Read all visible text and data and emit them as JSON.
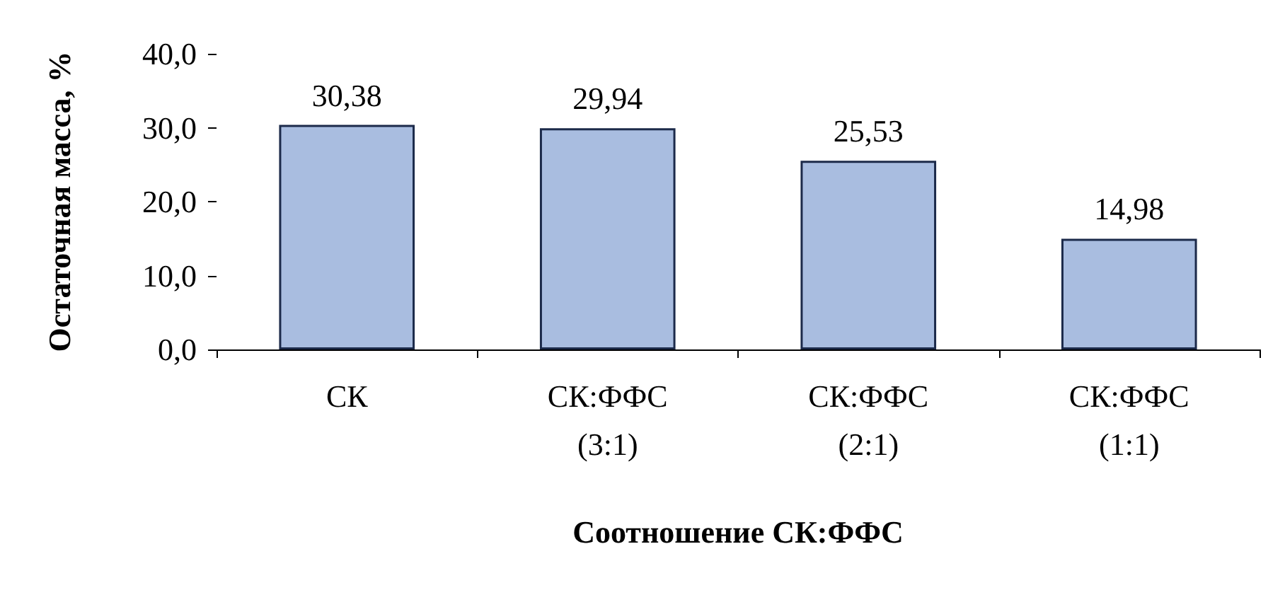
{
  "chart_data": {
    "type": "bar",
    "xlabel": "Соотношение СК:ФФС",
    "ylabel": "Остаточная масса, %",
    "categories": [
      "СК",
      "СК:ФФС\n(3:1)",
      "СК:ФФС\n(2:1)",
      "СК:ФФС\n(1:1)"
    ],
    "values": [
      30.38,
      29.94,
      25.53,
      14.98
    ],
    "value_labels": [
      "30,38",
      "29,94",
      "25,53",
      "14,98"
    ],
    "color": "#a9bde0",
    "ylim": [
      0,
      40
    ],
    "yticks": [
      {
        "value": 0,
        "label": "0,0"
      },
      {
        "value": 10,
        "label": "10,0"
      },
      {
        "value": 20,
        "label": "20,0"
      },
      {
        "value": 30,
        "label": "30,0"
      },
      {
        "value": 40,
        "label": "40,0"
      }
    ],
    "grid": false
  }
}
